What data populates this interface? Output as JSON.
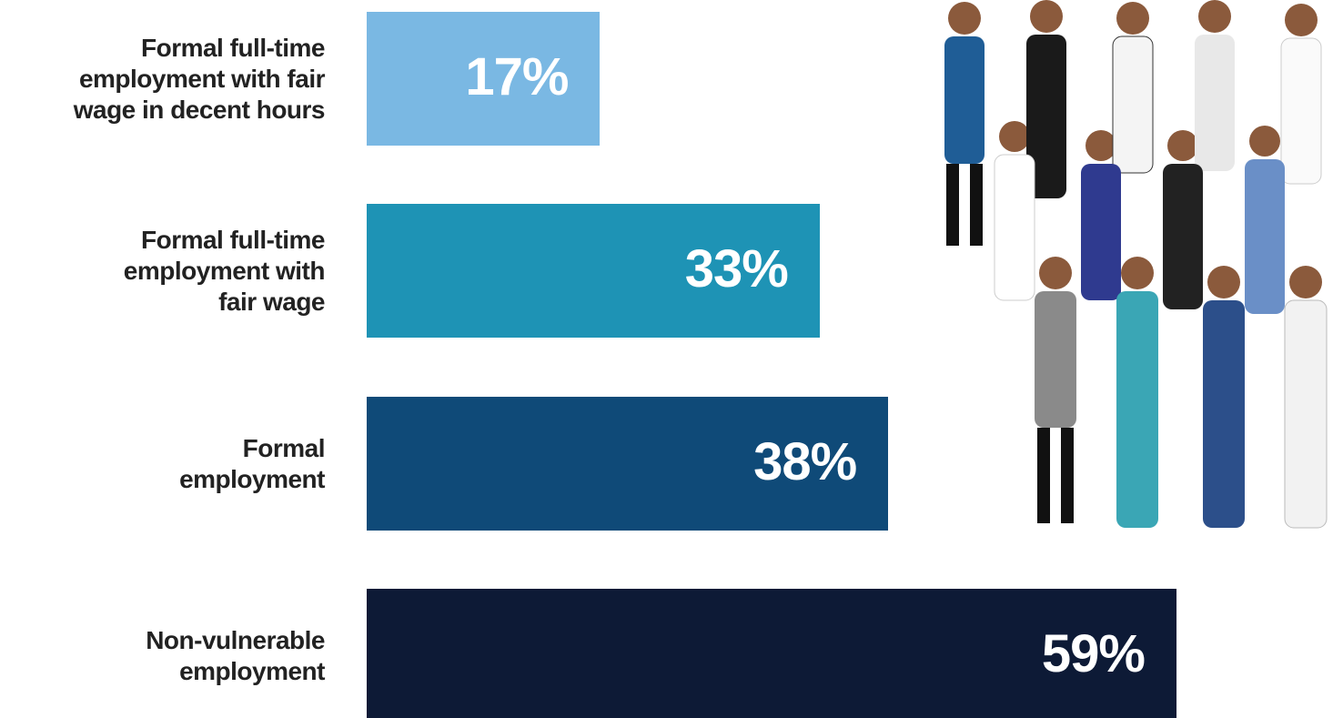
{
  "chart_data": {
    "type": "bar",
    "orientation": "horizontal",
    "categories": [
      "Formal full-time\nemployment with fair\nwage in decent hours",
      "Formal full-time\nemployment with\nfair wage",
      "Formal\nemployment",
      "Non-vulnerable\nemployment"
    ],
    "values": [
      17,
      33,
      38,
      59
    ],
    "value_labels": [
      "17%",
      "33%",
      "38%",
      "59%"
    ],
    "colors": [
      "#7ab8e3",
      "#1e93b5",
      "#0f4a78",
      "#0d1a36"
    ]
  }
}
